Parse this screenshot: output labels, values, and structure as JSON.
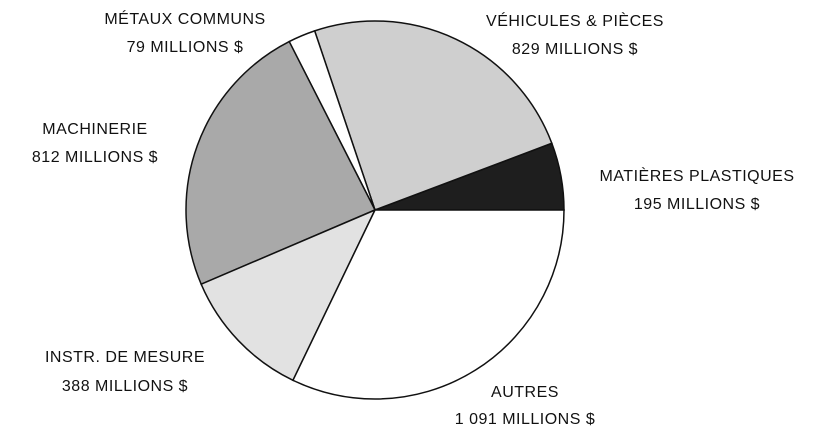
{
  "chart_data": {
    "type": "pie",
    "categories": [
      "MATIÈRES PLASTIQUES",
      "VÉHICULES & PIÈCES",
      "MÉTAUX COMMUNS",
      "MACHINERIE",
      "INSTR. DE MESURE",
      "AUTRES"
    ],
    "values": [
      195,
      829,
      79,
      812,
      388,
      1091
    ],
    "value_labels": [
      "195 MILLIONS $",
      "829 MILLIONS $",
      "79 MILLIONS $",
      "812 MILLIONS $",
      "388 MILLIONS $",
      "1 091 MILLIONS $"
    ],
    "colors": [
      "#1e1e1e",
      "#cfcfcf",
      "#ffffff",
      "#a9a9a9",
      "#e2e2e2",
      "#ffffff"
    ]
  }
}
